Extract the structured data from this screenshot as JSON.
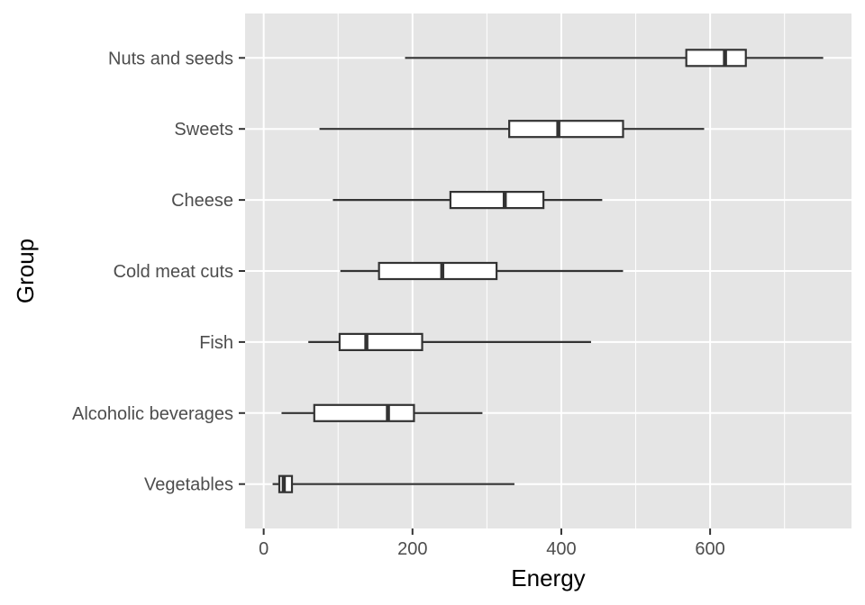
{
  "chart_data": {
    "type": "boxplot",
    "orientation": "horizontal",
    "xlabel": "Energy",
    "ylabel": "Group",
    "xlim": [
      -25,
      790
    ],
    "x_ticks": [
      0,
      200,
      400,
      600
    ],
    "x_tick_labels": [
      "0",
      "200",
      "400",
      "600"
    ],
    "grid": true,
    "colors": {
      "panel_background": "#e5e5e5",
      "grid": "#ffffff",
      "box_fill": "#ffffff",
      "box_line": "#333333"
    },
    "categories": [
      "Nuts and seeds",
      "Sweets",
      "Cheese",
      "Cold meat cuts",
      "Fish",
      "Alcoholic beverages",
      "Vegetables"
    ],
    "boxes": [
      {
        "group": "Nuts and seeds",
        "min": 190,
        "q1": 568,
        "median": 620,
        "q3": 648,
        "max": 752
      },
      {
        "group": "Sweets",
        "min": 75,
        "q1": 330,
        "median": 396,
        "q3": 483,
        "max": 592
      },
      {
        "group": "Cheese",
        "min": 93,
        "q1": 251,
        "median": 324,
        "q3": 376,
        "max": 455
      },
      {
        "group": "Cold meat cuts",
        "min": 103,
        "q1": 155,
        "median": 240,
        "q3": 313,
        "max": 483
      },
      {
        "group": "Fish",
        "min": 60,
        "q1": 102,
        "median": 138,
        "q3": 213,
        "max": 440
      },
      {
        "group": "Alcoholic beverages",
        "min": 24,
        "q1": 68,
        "median": 167,
        "q3": 202,
        "max": 294
      },
      {
        "group": "Vegetables",
        "min": 12,
        "q1": 21,
        "median": 27,
        "q3": 38,
        "max": 337
      }
    ]
  }
}
